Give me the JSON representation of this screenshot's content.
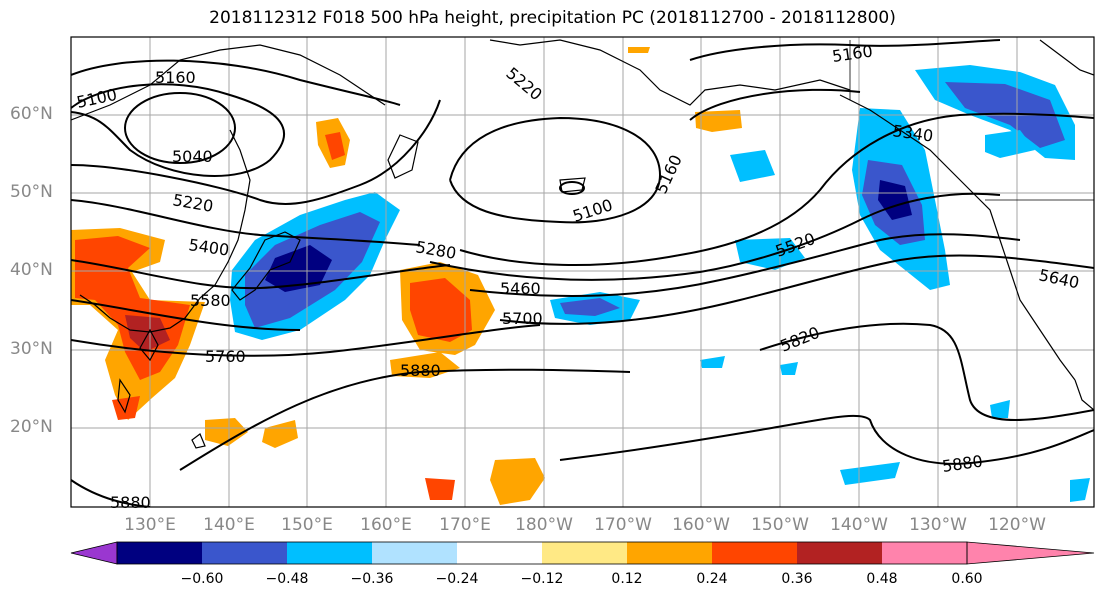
{
  "title": "2018112312 F018 500 hPa height, precipitation PC (2018112700 - 2018112800)",
  "lat_labels": [
    "60°N",
    "50°N",
    "40°N",
    "30°N",
    "20°N"
  ],
  "lon_labels": [
    "130°E",
    "140°E",
    "150°E",
    "160°E",
    "170°E",
    "180°W",
    "170°W",
    "160°W",
    "150°W",
    "140°W",
    "130°W",
    "120°W"
  ],
  "contour_labels": [
    "5160",
    "5100",
    "5040",
    "5220",
    "5400",
    "5580",
    "5760",
    "5280",
    "5460",
    "5700",
    "5880",
    "5220",
    "5100",
    "5160",
    "5160",
    "5340",
    "5520",
    "5640",
    "5820",
    "5880",
    "5880"
  ],
  "colorbar": {
    "ticks": [
      "−0.60",
      "−0.48",
      "−0.36",
      "−0.24",
      "−0.12",
      "0.12",
      "0.24",
      "0.36",
      "0.48",
      "0.60"
    ],
    "colors": [
      "#9a37d0",
      "#000080",
      "#3a56cc",
      "#00bfff",
      "#b0e2ff",
      "#ffffff",
      "#ffe985",
      "#ffa500",
      "#ff4500",
      "#b22222",
      "#ff83ac"
    ]
  }
}
